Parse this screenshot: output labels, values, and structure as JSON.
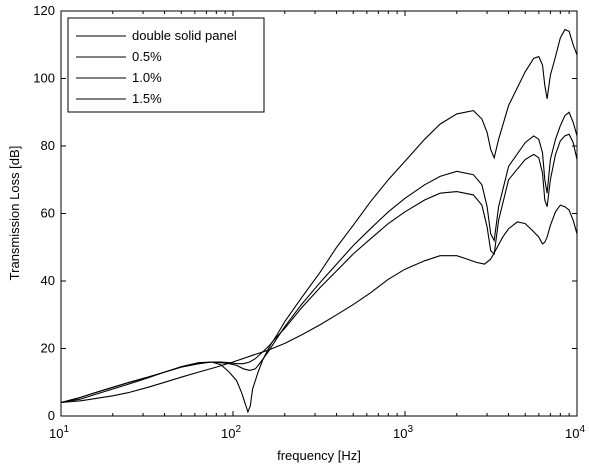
{
  "chart_data": {
    "type": "line",
    "title": "",
    "xlabel": "frequency [Hz]",
    "ylabel": "Transmission Loss [dB]",
    "xscale": "log",
    "xlim": [
      10,
      10000
    ],
    "ylim": [
      0,
      120
    ],
    "grid": false,
    "legend_position": "top-left",
    "x_ticks": [
      {
        "value": 10,
        "base": "10",
        "exp": "1"
      },
      {
        "value": 100,
        "base": "10",
        "exp": "2"
      },
      {
        "value": 1000,
        "base": "10",
        "exp": "3"
      },
      {
        "value": 10000,
        "base": "10",
        "exp": "4"
      }
    ],
    "y_ticks": [
      "0",
      "20",
      "40",
      "60",
      "80",
      "100",
      "120"
    ],
    "series": [
      {
        "name": "double solid panel",
        "color": "#000000",
        "x": [
          10,
          13,
          16,
          20,
          25,
          32,
          40,
          50,
          63,
          75,
          85,
          95,
          105,
          112,
          118,
          122,
          126,
          130,
          140,
          150,
          165,
          180,
          200,
          250,
          320,
          400,
          500,
          630,
          800,
          1000,
          1300,
          1600,
          2000,
          2500,
          2800,
          3000,
          3150,
          3300,
          3500,
          4000,
          5000,
          5600,
          6000,
          6300,
          6500,
          6700,
          7000,
          7500,
          8000,
          8500,
          9000,
          9500,
          10000
        ],
        "y": [
          4,
          5,
          6.5,
          8,
          9.5,
          11.3,
          13,
          14.6,
          15.8,
          16,
          15.2,
          13,
          10.5,
          7,
          3.5,
          1.2,
          3,
          8,
          13,
          17,
          21,
          24,
          28,
          35,
          42.5,
          50,
          56.5,
          63.5,
          70,
          75.5,
          82,
          86.5,
          89.5,
          90.5,
          88,
          84,
          79,
          76.5,
          82,
          92,
          102,
          106,
          106.5,
          104,
          98,
          94,
          101,
          106.5,
          112,
          114.5,
          114,
          110,
          107
        ]
      },
      {
        "name": "0.5%",
        "color": "#000000",
        "x": [
          10,
          13,
          16,
          20,
          25,
          32,
          40,
          50,
          63,
          75,
          85,
          95,
          105,
          115,
          125,
          135,
          145,
          160,
          180,
          200,
          250,
          320,
          400,
          500,
          630,
          800,
          1000,
          1300,
          1600,
          2000,
          2500,
          2800,
          3000,
          3150,
          3300,
          3500,
          4000,
          5000,
          5600,
          6000,
          6300,
          6500,
          6700,
          7000,
          7500,
          8000,
          8500,
          9000,
          9500,
          10000
        ],
        "y": [
          4,
          5.5,
          7,
          8.5,
          10,
          11.5,
          13,
          14.5,
          15.5,
          16,
          15.8,
          15.5,
          15,
          14,
          13.5,
          14,
          16,
          19,
          23,
          26.5,
          33,
          39.5,
          45,
          50.5,
          55.5,
          60.5,
          64.5,
          68.5,
          71,
          72.5,
          71.5,
          68.5,
          62,
          54,
          52,
          62,
          74,
          81,
          83,
          82,
          78,
          70,
          66,
          76,
          82,
          86,
          89,
          90,
          87,
          83
        ]
      },
      {
        "name": "1.0%",
        "color": "#000000",
        "x": [
          10,
          13,
          16,
          20,
          25,
          32,
          40,
          50,
          63,
          75,
          85,
          95,
          105,
          115,
          125,
          135,
          145,
          160,
          180,
          200,
          250,
          320,
          400,
          500,
          630,
          800,
          1000,
          1300,
          1600,
          2000,
          2500,
          2800,
          3000,
          3150,
          3300,
          3500,
          4000,
          5000,
          5600,
          6000,
          6300,
          6500,
          6700,
          7000,
          7500,
          8000,
          8500,
          9000,
          9500,
          10000
        ],
        "y": [
          4,
          5.5,
          7,
          8.5,
          10,
          11.5,
          13,
          14.5,
          15.5,
          16,
          16,
          15.8,
          15.5,
          15.5,
          16,
          17,
          18.5,
          20.5,
          23.5,
          26,
          32,
          38,
          43,
          48,
          52.5,
          57,
          60.5,
          64,
          66,
          66.5,
          65.5,
          62.5,
          56,
          49,
          48,
          58,
          70,
          76,
          77.5,
          76.5,
          72,
          64,
          62,
          70,
          77.5,
          81.5,
          83,
          83.5,
          81,
          76
        ]
      },
      {
        "name": "1.5%",
        "color": "#000000",
        "x": [
          10,
          13,
          16,
          20,
          25,
          32,
          40,
          50,
          63,
          80,
          100,
          130,
          160,
          200,
          250,
          320,
          400,
          500,
          630,
          800,
          1000,
          1300,
          1600,
          2000,
          2300,
          2600,
          2900,
          3150,
          3400,
          3700,
          4000,
          4500,
          5000,
          5500,
          6000,
          6300,
          6500,
          6700,
          7000,
          7500,
          8000,
          8500,
          9000,
          9500,
          10000
        ],
        "y": [
          4,
          4.5,
          5.2,
          6,
          7,
          8.5,
          10,
          11.5,
          13,
          14.5,
          16,
          18,
          19.5,
          21.5,
          24,
          27,
          30,
          33,
          36.5,
          40.5,
          43.5,
          46,
          47.5,
          47.5,
          46.5,
          45.5,
          45,
          46.5,
          49.5,
          53,
          55.5,
          57.5,
          57,
          55,
          53,
          51,
          51.5,
          53,
          56.5,
          60.5,
          62.5,
          62,
          61,
          58,
          54
        ]
      }
    ]
  }
}
